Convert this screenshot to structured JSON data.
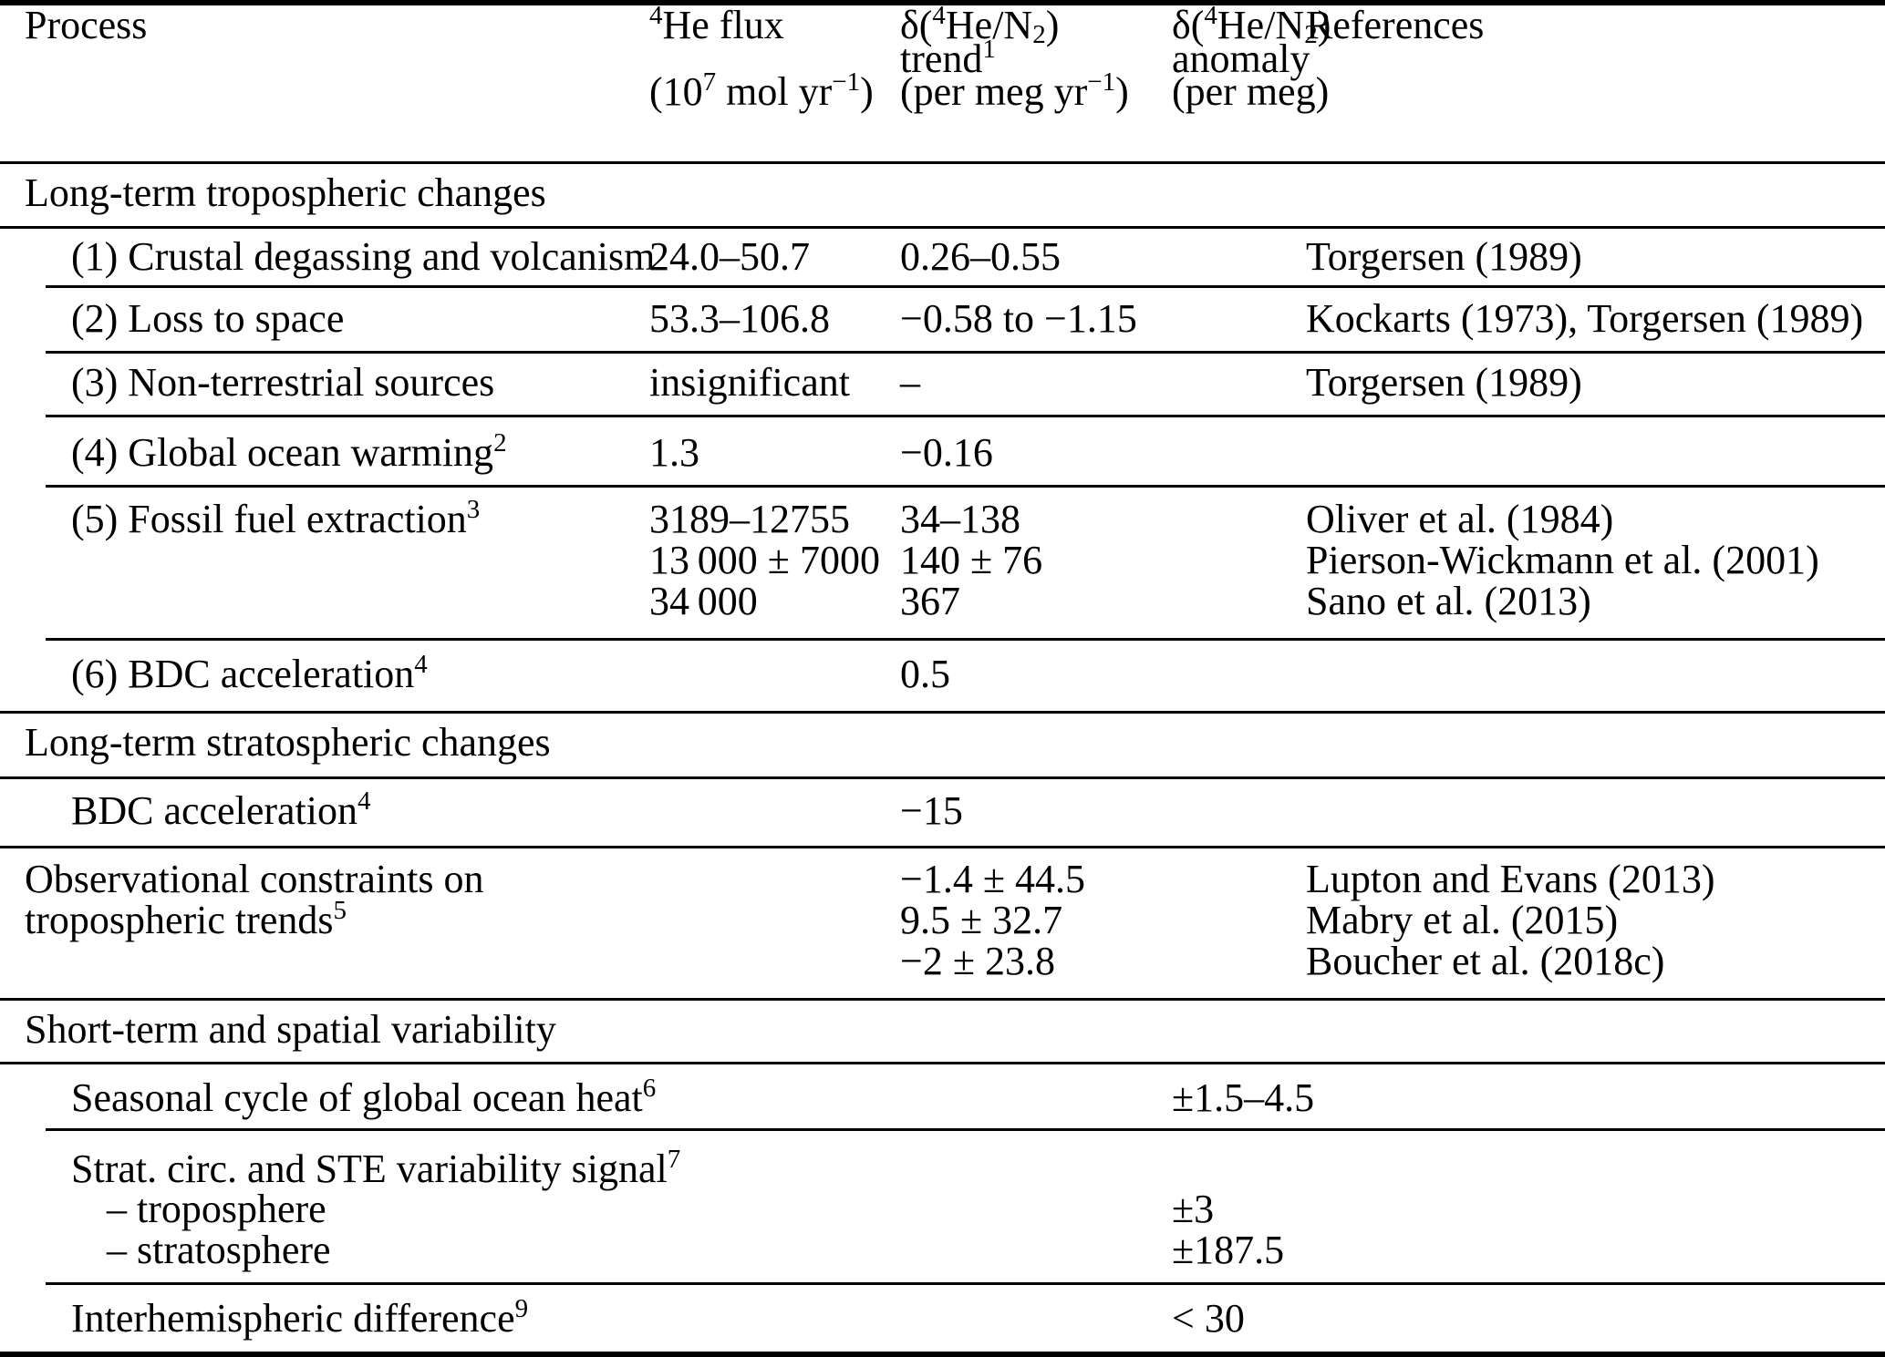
{
  "table": {
    "header": {
      "process": "Process",
      "flux_line1": "^{4}He flux",
      "flux_line3": "(10^{7} mol yr^{−1})",
      "trend_line1": "δ(^{4}He/N_{2})",
      "trend_line2": "trend^{1}",
      "trend_line3": "(per meg yr^{−1})",
      "anomaly_line1": "δ(^{4}He/N_{2})",
      "anomaly_line2": "anomaly",
      "anomaly_line3": "(per meg)",
      "references": "References"
    },
    "sections": {
      "s1": "Long-term tropospheric changes",
      "s2": "Long-term stratospheric changes",
      "s3": "Short-term and spatial variability"
    },
    "rows": {
      "r1": {
        "process": "(1) Crustal degassing and volcanism",
        "flux": "24.0–50.7",
        "trend": "0.26–0.55",
        "refs": "Torgersen (1989)"
      },
      "r2": {
        "process": "(2) Loss to space",
        "flux": "53.3–106.8",
        "trend": "−0.58 to −1.15",
        "refs": "Kockarts (1973), Torgersen (1989)"
      },
      "r3": {
        "process": "(3) Non-terrestrial sources",
        "flux": "insignificant",
        "trend": "–",
        "refs": "Torgersen (1989)"
      },
      "r4": {
        "process": "(4) Global ocean warming^{2}",
        "flux": "1.3",
        "trend": "−0.16"
      },
      "r5": {
        "process": "(5) Fossil fuel extraction^{3}",
        "flux1": "3189–12755",
        "flux2": "13 000 ± 7000",
        "flux3": "34 000",
        "trend1": "34–138",
        "trend2": "140 ± 76",
        "trend3": "367",
        "refs1": "Oliver et al. (1984)",
        "refs2": "Pierson-Wickmann et al. (2001)",
        "refs3": "Sano et al. (2013)"
      },
      "r6": {
        "process": "(6) BDC acceleration^{4}",
        "trend": "0.5"
      },
      "strat_bdc": {
        "process": "BDC acceleration^{4}",
        "trend": "−15"
      },
      "obs": {
        "process_line1": "Observational constraints on",
        "process_line2": "tropospheric trends^{5}",
        "trend1": "−1.4 ± 44.5",
        "trend2": "9.5 ± 32.7",
        "trend3": "−2 ± 23.8",
        "refs1": "Lupton and Evans (2013)",
        "refs2": "Mabry et al. (2015)",
        "refs3": "Boucher et al. (2018c)"
      },
      "seasonal": {
        "process": "Seasonal cycle of global ocean heat^{6}",
        "anomaly": "±1.5–4.5"
      },
      "strat_ste": {
        "process": "Strat. circ. and STE variability signal^{7}",
        "sub1": "– troposphere",
        "sub1_anomaly": "±3",
        "sub2": "– stratosphere",
        "sub2_anomaly": "±187.5"
      },
      "interhem": {
        "process": "Interhemispheric difference^{9}",
        "anomaly": "< 30"
      }
    }
  }
}
